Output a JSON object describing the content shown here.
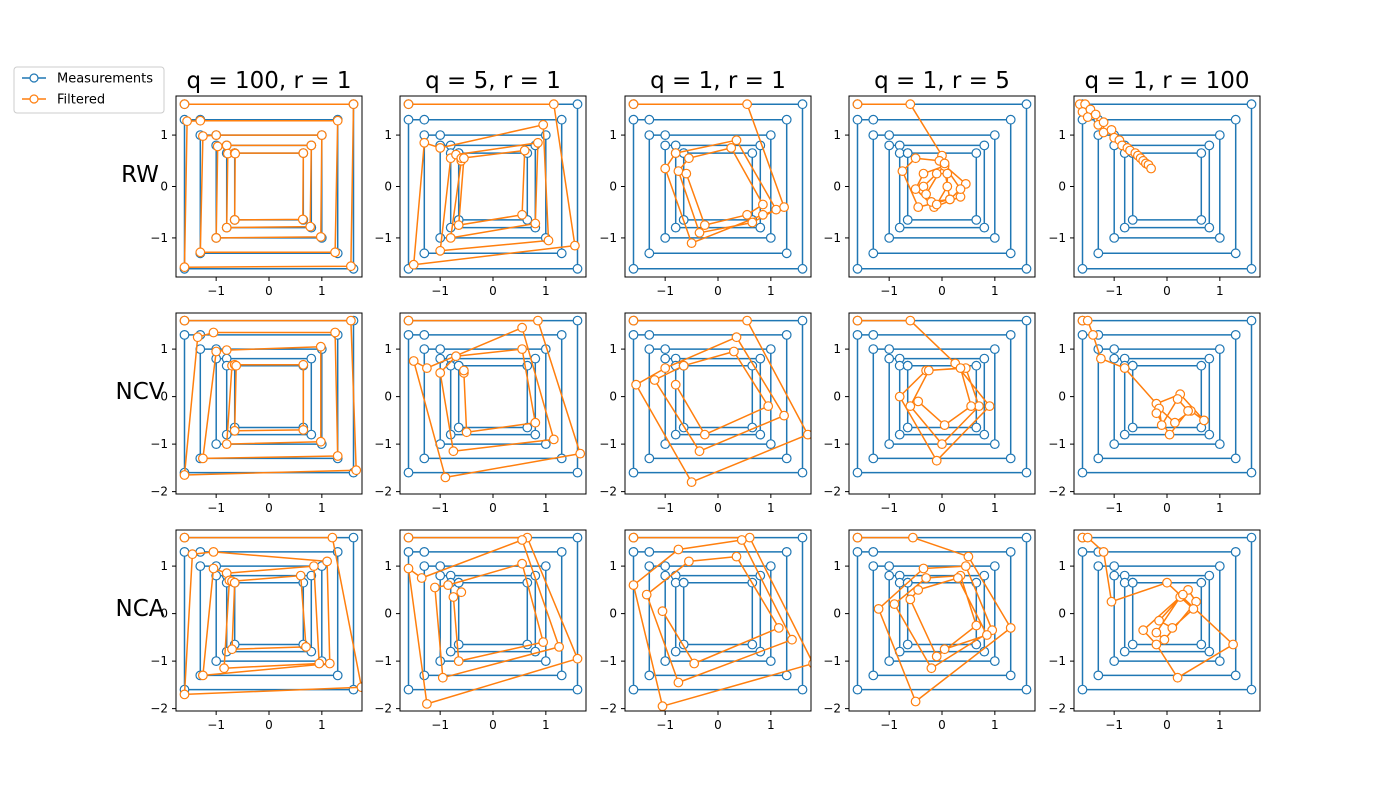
{
  "colors": {
    "measurements": "#1f77b4",
    "filtered": "#ff7f0e"
  },
  "legend": {
    "placement": "top-left",
    "entries": [
      "Measurements",
      "Filtered"
    ]
  },
  "chart_data": {
    "type": "line",
    "grid": false,
    "layout": "3x5 small multiples",
    "col_titles": [
      "q = 100, r = 1",
      "q = 5, r = 1",
      "q = 1, r = 1",
      "q = 1, r = 5",
      "q = 1, r = 100"
    ],
    "row_labels": [
      "RW",
      "NCV",
      "NCA"
    ],
    "xticks": [
      -1,
      0,
      1
    ],
    "xlim": [
      -1.76,
      1.76
    ],
    "ylim_by_row": [
      [
        -1.76,
        1.76
      ],
      [
        -2.05,
        1.76
      ],
      [
        -2.05,
        1.76
      ]
    ],
    "yticks_by_row": [
      [
        -1,
        0,
        1
      ],
      [
        -2,
        -1,
        0,
        1
      ],
      [
        -2,
        -1,
        0,
        1
      ]
    ],
    "measurements": {
      "name": "Measurements",
      "x": [
        -1.6,
        1.6,
        1.6,
        -1.6,
        -1.6,
        -1.3,
        1.3,
        1.3,
        -1.3,
        -1.3,
        -1.0,
        1.0,
        1.0,
        -1.0,
        -1.0,
        -0.8,
        0.8,
        0.8,
        -0.8,
        -0.8,
        -0.65,
        0.65,
        0.65,
        -0.65,
        -0.65
      ],
      "y": [
        1.6,
        1.6,
        -1.6,
        -1.6,
        1.3,
        1.3,
        1.3,
        -1.3,
        -1.3,
        1.0,
        1.0,
        1.0,
        -1.0,
        -1.0,
        0.8,
        0.8,
        0.8,
        -0.8,
        -0.8,
        0.65,
        0.65,
        0.65,
        -0.65,
        -0.65,
        0.65
      ]
    },
    "filtered": [
      [
        {
          "x": [
            -1.6,
            1.6,
            1.55,
            -1.6,
            -1.55,
            -1.3,
            1.3,
            1.25,
            -1.3,
            -1.25,
            -1.0,
            1.0,
            0.98,
            -1.0,
            -0.97,
            -0.8,
            0.8,
            0.78,
            -0.8,
            -0.78,
            -0.65,
            0.65,
            0.64,
            -0.65,
            -0.64
          ],
          "y": [
            1.6,
            1.6,
            -1.55,
            -1.57,
            1.27,
            1.28,
            1.28,
            -1.28,
            -1.28,
            0.98,
            1.0,
            1.0,
            -0.98,
            -1.0,
            0.78,
            0.8,
            0.8,
            -0.78,
            -0.8,
            0.64,
            0.65,
            0.65,
            -0.64,
            -0.65,
            0.64
          ]
        },
        {
          "x": [
            -1.6,
            1.15,
            1.55,
            -1.5,
            -1.3,
            -1.0,
            0.95,
            1.05,
            -1.0,
            -0.8,
            -0.7,
            0.85,
            0.8,
            -0.8,
            -0.6,
            -0.6,
            0.6,
            0.55,
            -0.65,
            -0.55
          ],
          "y": [
            1.6,
            1.6,
            -1.15,
            -1.52,
            0.85,
            0.75,
            1.2,
            -1.05,
            -1.25,
            0.55,
            0.62,
            0.85,
            -0.72,
            -1.0,
            0.5,
            0.55,
            0.7,
            -0.55,
            -0.75,
            0.55
          ]
        },
        {
          "x": [
            -1.6,
            0.55,
            1.25,
            0.85,
            -0.5,
            -1.0,
            -0.8,
            0.35,
            1.1,
            0.65,
            -0.35,
            -0.75,
            -0.55,
            0.25,
            0.85,
            0.55,
            -0.25,
            -0.6
          ],
          "y": [
            1.6,
            1.6,
            -0.4,
            -0.55,
            -1.1,
            0.35,
            0.65,
            0.9,
            -0.45,
            -0.7,
            -0.9,
            0.3,
            0.55,
            0.75,
            -0.35,
            -0.55,
            -0.75,
            0.25
          ]
        },
        {
          "x": [
            -1.6,
            -0.6,
            0.0,
            0.15,
            -0.45,
            -0.75,
            -0.5,
            -0.05,
            0.45,
            0.35,
            -0.15,
            -0.5,
            -0.35,
            0.05,
            0.35,
            0.15,
            -0.2,
            -0.35,
            -0.1,
            0.1,
            0.1,
            -0.1,
            -0.3,
            0.05
          ],
          "y": [
            1.6,
            1.6,
            0.6,
            -0.25,
            -0.4,
            0.3,
            0.55,
            0.5,
            0.05,
            -0.2,
            -0.4,
            -0.05,
            0.25,
            0.4,
            -0.05,
            -0.25,
            -0.3,
            0.0,
            0.25,
            0.25,
            0.0,
            -0.35,
            -0.15,
            0.45
          ]
        },
        {
          "x": [
            -1.65,
            -1.55,
            -1.6,
            -1.45,
            -1.5,
            -1.35,
            -1.3,
            -1.2,
            -1.2,
            -1.05,
            -1.0,
            -0.9,
            -0.85,
            -0.75,
            -0.7,
            -0.6,
            -0.55,
            -0.5,
            -0.45,
            -0.4,
            -0.35,
            -0.3
          ],
          "y": [
            1.6,
            1.6,
            1.45,
            1.5,
            1.35,
            1.4,
            1.2,
            1.25,
            1.05,
            1.1,
            0.95,
            0.9,
            0.8,
            0.75,
            0.7,
            0.65,
            0.6,
            0.55,
            0.5,
            0.45,
            0.42,
            0.35
          ]
        }
      ],
      [
        {
          "x": [
            -1.6,
            1.55,
            1.65,
            -1.6,
            -1.35,
            -1.05,
            1.25,
            1.3,
            -1.25,
            -1.0,
            -0.8,
            0.98,
            0.98,
            -0.8,
            -0.7,
            -0.65,
            0.65,
            0.65,
            -0.65,
            -0.62
          ],
          "y": [
            1.6,
            1.6,
            -1.55,
            -1.65,
            1.25,
            1.35,
            1.35,
            -1.25,
            -1.3,
            0.95,
            0.98,
            1.05,
            -0.95,
            -1.0,
            0.65,
            0.67,
            0.67,
            -0.7,
            -0.72,
            0.65
          ]
        },
        {
          "x": [
            -1.6,
            0.85,
            1.65,
            -0.9,
            -1.5,
            -1.25,
            0.55,
            1.15,
            -0.75,
            -1.0,
            -0.7,
            0.55,
            0.8,
            -0.5,
            -0.55,
            -0.55
          ],
          "y": [
            1.6,
            1.6,
            -1.2,
            -1.7,
            0.75,
            0.6,
            1.45,
            -0.9,
            -1.15,
            0.5,
            0.85,
            1.0,
            -0.55,
            -0.75,
            0.5,
            0.55
          ]
        },
        {
          "x": [
            -1.6,
            0.55,
            1.7,
            -0.5,
            -1.55,
            -1.0,
            0.35,
            1.25,
            -0.35,
            -1.2,
            -0.65,
            0.3,
            0.95,
            -0.25,
            -0.8
          ],
          "y": [
            1.6,
            1.6,
            -0.8,
            -1.8,
            0.25,
            0.6,
            1.25,
            -0.4,
            -1.15,
            0.35,
            0.65,
            0.95,
            -0.2,
            -0.8,
            0.25
          ]
        },
        {
          "x": [
            -1.6,
            -0.6,
            0.25,
            0.9,
            -0.1,
            -0.8,
            -0.3,
            0.45,
            0.7,
            0.0,
            -0.6,
            -0.25,
            0.35,
            0.55,
            0.05,
            -0.45
          ],
          "y": [
            1.6,
            1.6,
            0.7,
            -0.2,
            -1.35,
            0.0,
            0.55,
            0.6,
            -0.2,
            -1.0,
            -0.2,
            0.55,
            0.6,
            -0.2,
            -0.6,
            -0.1
          ]
        },
        {
          "x": [
            -1.6,
            -1.5,
            -1.4,
            -1.25,
            -0.8,
            -0.2,
            0.25,
            0.7,
            0.45,
            0.15,
            -0.15,
            -0.1,
            0.2,
            0.4,
            0.05,
            -0.2
          ],
          "y": [
            1.6,
            1.6,
            1.3,
            0.8,
            0.6,
            -0.15,
            0.05,
            -0.5,
            -0.3,
            -0.55,
            -0.25,
            -0.6,
            -0.05,
            -0.3,
            -0.8,
            -0.35
          ]
        }
      ],
      [
        {
          "x": [
            -1.6,
            1.2,
            1.75,
            -1.6,
            -1.45,
            -1.05,
            1.1,
            1.15,
            -1.25,
            -1.05,
            -0.8,
            0.85,
            0.95,
            -0.85,
            -0.75,
            -0.7,
            0.6,
            0.7,
            -0.7,
            -0.65
          ],
          "y": [
            1.6,
            1.6,
            -1.55,
            -1.7,
            1.25,
            1.3,
            1.1,
            -1.05,
            -1.3,
            0.95,
            0.85,
            1.0,
            -1.05,
            -1.15,
            0.7,
            0.68,
            0.8,
            -0.7,
            -0.75,
            0.65
          ]
        },
        {
          "x": [
            -1.6,
            0.65,
            1.6,
            -1.25,
            -1.6,
            -1.35,
            0.55,
            1.25,
            -0.95,
            -1.1,
            -0.85,
            0.55,
            0.95,
            -0.65,
            -0.75,
            -0.6
          ],
          "y": [
            1.6,
            1.6,
            -0.95,
            -1.9,
            0.95,
            0.75,
            1.55,
            -0.7,
            -1.35,
            0.55,
            0.6,
            1.05,
            -0.6,
            -1.0,
            0.35,
            0.45
          ]
        },
        {
          "x": [
            -1.6,
            0.6,
            1.8,
            -1.05,
            -1.6,
            -0.75,
            0.45,
            1.4,
            -0.75,
            -1.35,
            -0.55,
            0.35,
            1.15,
            -0.45,
            -1.05
          ],
          "y": [
            1.6,
            1.6,
            -1.05,
            -1.95,
            0.6,
            1.35,
            1.55,
            -0.55,
            -1.45,
            0.4,
            1.1,
            1.2,
            -0.3,
            -1.05,
            0.05
          ]
        },
        {
          "x": [
            -1.6,
            -0.55,
            0.5,
            1.3,
            -0.5,
            -1.2,
            -0.35,
            0.45,
            0.95,
            -0.2,
            -0.9,
            -0.3,
            0.35,
            0.65,
            -0.1,
            -0.6,
            -0.45,
            0.3,
            0.85,
            0.05
          ],
          "y": [
            1.6,
            1.6,
            1.2,
            -0.3,
            -1.85,
            0.1,
            0.95,
            1.0,
            -0.35,
            -1.15,
            0.2,
            0.75,
            0.8,
            -0.25,
            -0.9,
            0.3,
            0.5,
            0.75,
            -0.45,
            -0.75
          ]
        },
        {
          "x": [
            -1.6,
            -1.5,
            -1.2,
            -1.05,
            0.0,
            1.25,
            0.2,
            -0.2,
            -0.45,
            0.4,
            0.55,
            -0.05,
            -0.2,
            0.25,
            0.5,
            0.1,
            -0.15,
            0.3
          ],
          "y": [
            1.6,
            1.6,
            1.3,
            0.25,
            0.65,
            -0.65,
            -1.35,
            -0.65,
            -0.35,
            0.5,
            0.25,
            -0.55,
            -0.4,
            0.35,
            0.1,
            -0.3,
            -0.15,
            0.4
          ]
        }
      ]
    ]
  }
}
